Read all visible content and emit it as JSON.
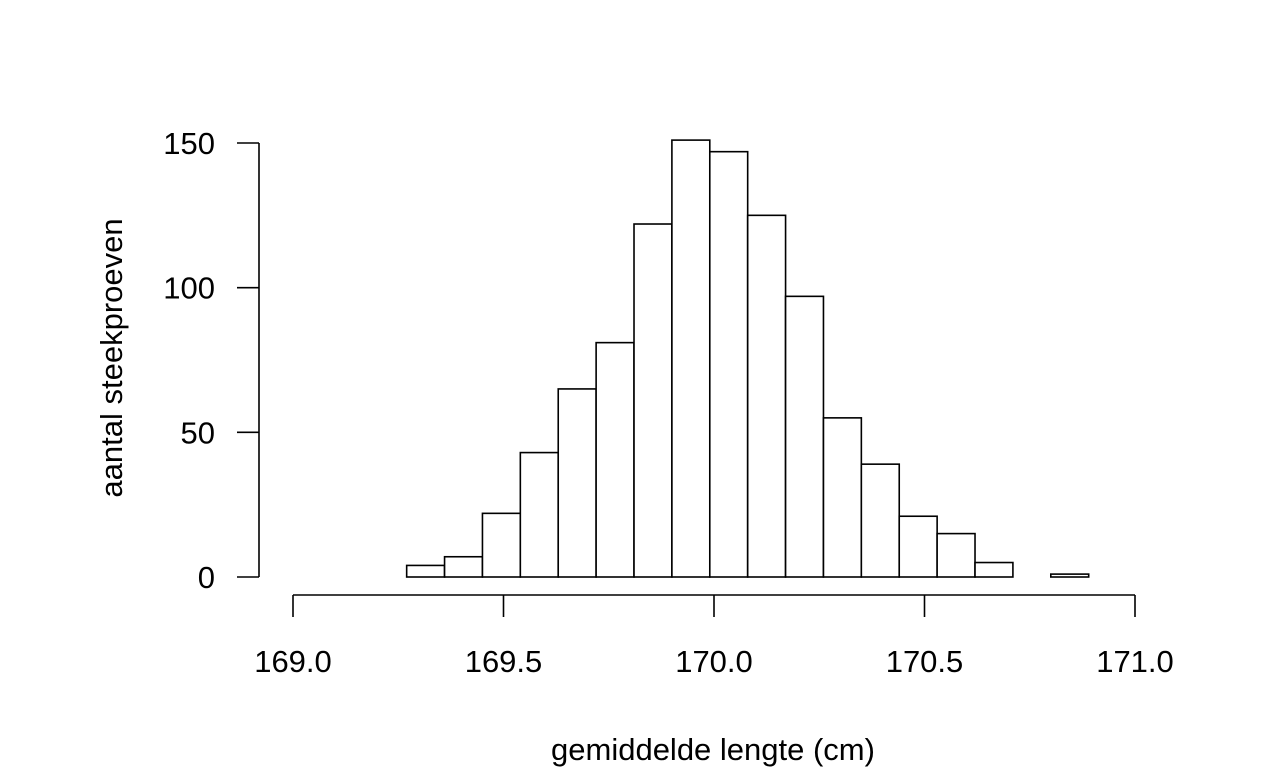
{
  "chart_data": {
    "type": "bar",
    "title": "",
    "xlabel": "gemiddelde lengte (cm)",
    "ylabel": "aantal steekproeven",
    "bin_edges": [
      169.0,
      169.09,
      169.18,
      169.27,
      169.36,
      169.45,
      169.54,
      169.63,
      169.72,
      169.81,
      169.9,
      169.99,
      170.08,
      170.17,
      170.26,
      170.35,
      170.44,
      170.53,
      170.62,
      170.71,
      170.8,
      170.89,
      171.0
    ],
    "values": [
      0,
      0,
      0,
      4,
      7,
      22,
      43,
      65,
      81,
      122,
      151,
      147,
      125,
      97,
      55,
      39,
      21,
      15,
      5,
      0,
      1,
      0
    ],
    "xlim": [
      169.0,
      171.0
    ],
    "ylim": [
      0,
      150
    ],
    "x_ticks": [
      169.0,
      169.5,
      170.0,
      170.5,
      171.0
    ],
    "x_tick_labels": [
      "169.0",
      "169.5",
      "170.0",
      "170.5",
      "171.0"
    ],
    "y_ticks": [
      0,
      50,
      100,
      150
    ],
    "y_tick_labels": [
      "0",
      "50",
      "100",
      "150"
    ],
    "grid": false,
    "legend": "none"
  }
}
